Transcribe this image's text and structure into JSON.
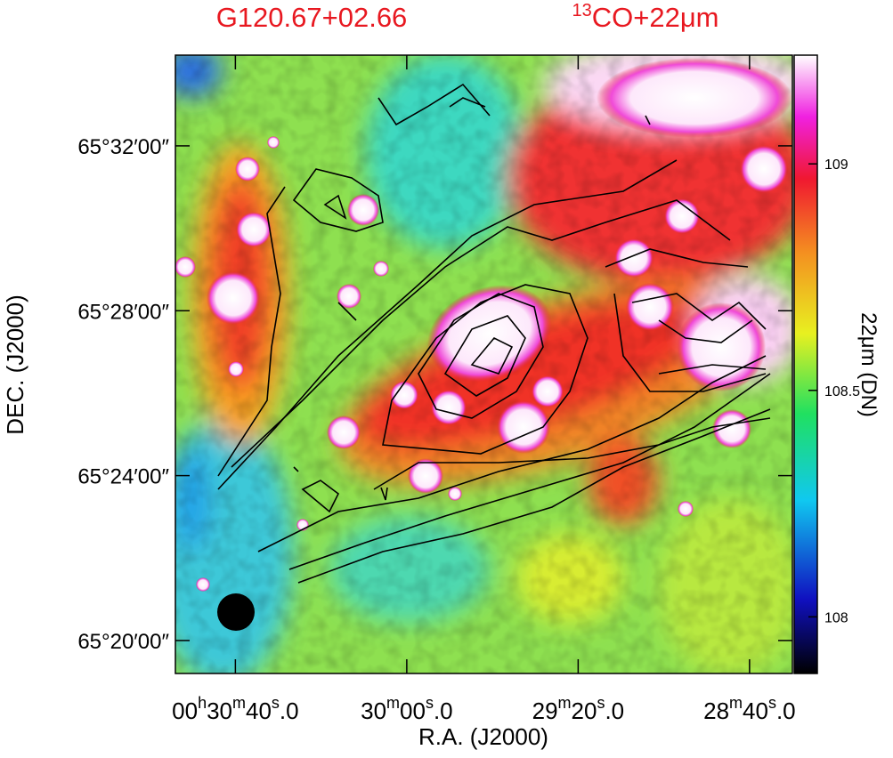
{
  "chart_data": {
    "type": "image",
    "title": "G120.67+02.66",
    "subtitle": "13CO+22μm",
    "xlabel": "R.A. (J2000)",
    "ylabel": "DEC. (J2000)",
    "xlim": [
      1854,
      1710
    ],
    "xticks": [
      {
        "value": 1840,
        "label": "00h30m40s.0"
      },
      {
        "value": 1800,
        "label": "30m00s.0"
      },
      {
        "value": 1760,
        "label": "29m20s.0"
      },
      {
        "value": 1720,
        "label": "28m40s.0"
      }
    ],
    "ylim": [
      19.2,
      34.2
    ],
    "yticks": [
      {
        "value": 32,
        "label": "65°32′00″"
      },
      {
        "value": 28,
        "label": "65°28′00″"
      },
      {
        "value": 24,
        "label": "65°24′00″"
      },
      {
        "value": 20,
        "label": "65°20′00″"
      }
    ],
    "colorbar": {
      "label": "22μm (DN)",
      "lim": [
        107.875,
        109.24
      ],
      "ticks": [
        108,
        108.5,
        109
      ]
    }
  }
}
